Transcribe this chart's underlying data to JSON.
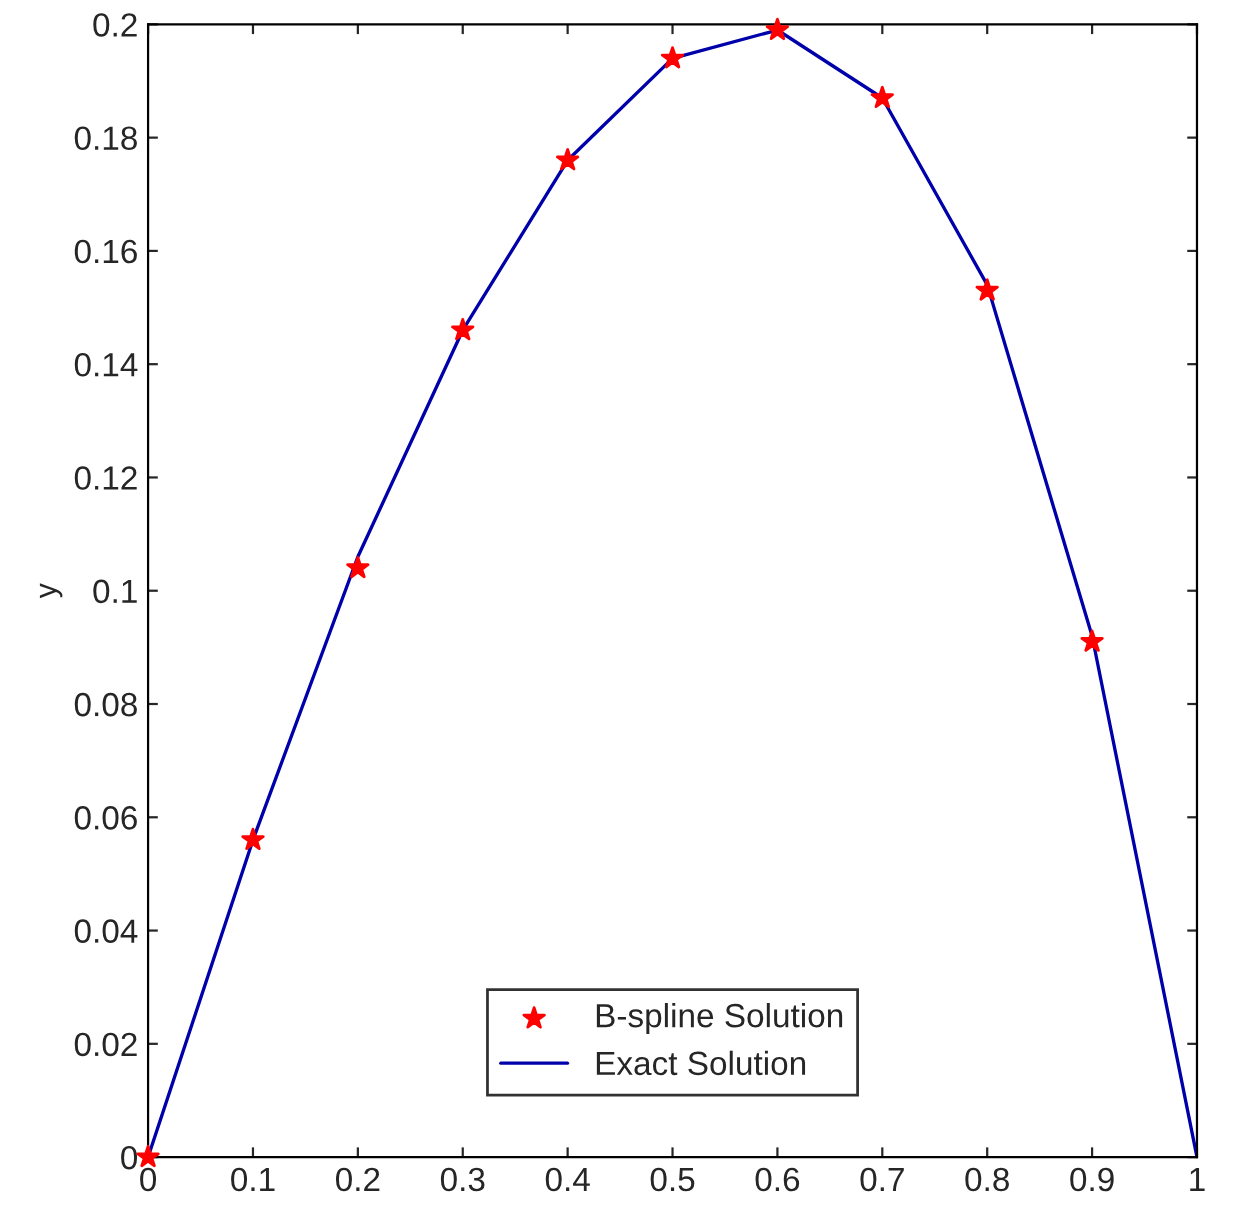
{
  "chart_data": {
    "type": "line",
    "ylabel": "y",
    "x": [
      0,
      0.1,
      0.2,
      0.3,
      0.4,
      0.5,
      0.6,
      0.7,
      0.8,
      0.9,
      1
    ],
    "series": [
      {
        "name": "B-spline Solution",
        "type": "scatter",
        "color": "#ff0000",
        "marker": "star",
        "x": [
          0,
          0.1,
          0.2,
          0.3,
          0.4,
          0.5,
          0.6,
          0.7,
          0.8,
          0.9
        ],
        "values": [
          0,
          0.056,
          0.104,
          0.146,
          0.176,
          0.194,
          0.199,
          0.187,
          0.153,
          0.091
        ]
      },
      {
        "name": "Exact Solution",
        "color": "#0000aa",
        "line_style": "solid",
        "values": [
          0,
          0.056,
          0.106,
          0.146,
          0.176,
          0.194,
          0.199,
          0.187,
          0.154,
          0.092,
          0
        ]
      }
    ],
    "xlim": [
      0,
      1
    ],
    "ylim": [
      0,
      0.2
    ],
    "xticks": [
      0,
      0.1,
      0.2,
      0.3,
      0.4,
      0.5,
      0.6,
      0.7,
      0.8,
      0.9,
      1
    ],
    "yticks": [
      0,
      0.02,
      0.04,
      0.06,
      0.08,
      0.1,
      0.12,
      0.14,
      0.16,
      0.18,
      0.2
    ],
    "grid": false,
    "legend": "bottom"
  }
}
